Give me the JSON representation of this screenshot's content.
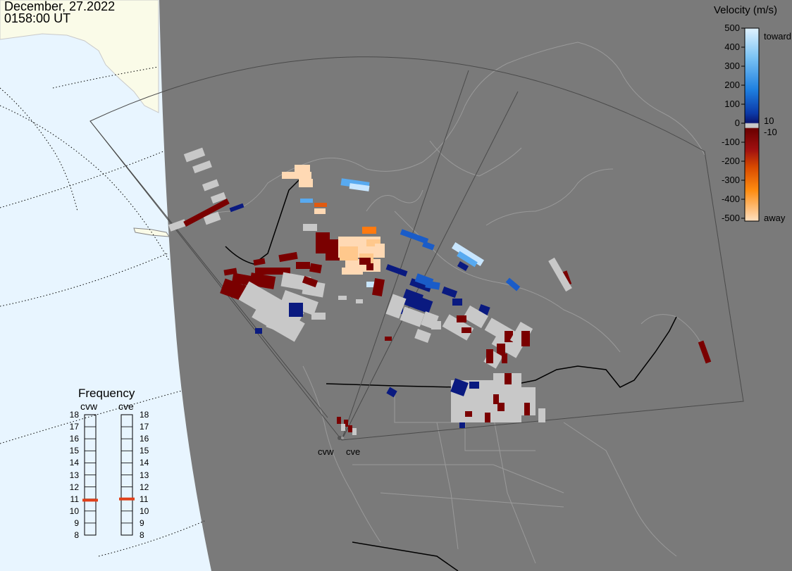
{
  "header": {
    "date": "December, 27.2022",
    "time": "0158:00 UT"
  },
  "velocity_scale": {
    "title": "Velocity (m/s)",
    "ticks": [
      "500",
      "400",
      "300",
      "200",
      "100",
      "0",
      "-100",
      "-200",
      "-300",
      "-400",
      "-500"
    ],
    "markers": [
      "10",
      "-10"
    ],
    "toward_label": "toward",
    "away_label": "away",
    "colors": {
      "toward_top": "#d8efff",
      "toward_mid": "#1e7fe0",
      "toward_dark": "#0c1f80",
      "zero_band": "#c8c8c8",
      "away_dark": "#7a0000",
      "away_mid": "#e55a00",
      "away_top": "#ffdcbb"
    }
  },
  "frequency_panel": {
    "title": "Frequency",
    "radars": [
      {
        "name": "cvw",
        "value": 10.9
      },
      {
        "name": "cve",
        "value": 11.0
      }
    ],
    "ticks": [
      "18",
      "17",
      "16",
      "15",
      "14",
      "13",
      "12",
      "11",
      "10",
      "9",
      "8"
    ],
    "indicator_color": "#e0401a"
  },
  "map": {
    "site_labels": [
      "cvw",
      "cve"
    ],
    "ocean_color": "#e8f5ff",
    "land_outside_color": "#fafbe8",
    "night_color": "#7a7a7a",
    "border_color": "#000000",
    "coast_color": "#9a9a9a",
    "ground_scatter_color": "#c8c8c8"
  }
}
